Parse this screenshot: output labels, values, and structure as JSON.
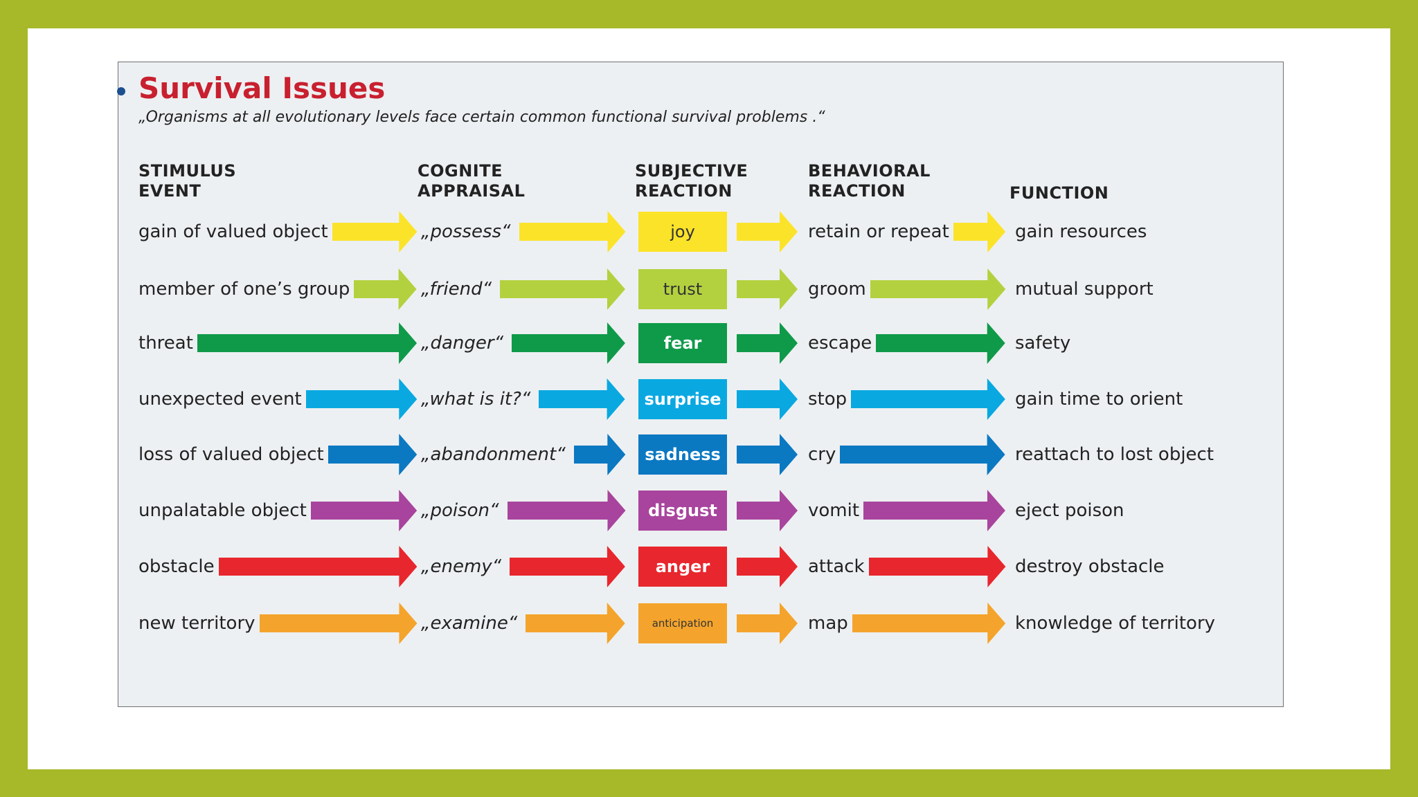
{
  "title": "Survival Issues",
  "subtitle": "„Organisms at all evolutionary levels face certain common functional survival problems .“",
  "headers": {
    "stimulus": [
      "STIMULUS",
      "EVENT"
    ],
    "appraisal": [
      "COGNITE",
      "APPRAISAL"
    ],
    "subjective": [
      "SUBJECTIVE",
      "REACTION"
    ],
    "behavioral": [
      "BEHAVIORAL",
      "REACTION"
    ],
    "function": "FUNCTION"
  },
  "rows": [
    {
      "stimulus": "gain of valued object",
      "appraisal": "„possess“",
      "emotion": "joy",
      "behavior": "retain or repeat",
      "function": "gain resources",
      "color": "#fbe32a"
    },
    {
      "stimulus": "member of one’s group",
      "appraisal": "„friend“",
      "emotion": "trust",
      "behavior": "groom",
      "function": "mutual support",
      "color": "#b3d13f"
    },
    {
      "stimulus": "threat",
      "appraisal": "„danger“",
      "emotion": "fear",
      "behavior": "escape",
      "function": "safety",
      "color": "#0f9a4a"
    },
    {
      "stimulus": "unexpected event",
      "appraisal": "„what is it?“",
      "emotion": "surprise",
      "behavior": "stop",
      "function": "gain time to orient",
      "color": "#0aa8e0"
    },
    {
      "stimulus": "loss of valued object",
      "appraisal": "„abandonment“",
      "emotion": "sadness",
      "behavior": "cry",
      "function": "reattach to lost object",
      "color": "#0b78c2"
    },
    {
      "stimulus": "unpalatable object",
      "appraisal": "„poison“",
      "emotion": "disgust",
      "behavior": "vomit",
      "function": "eject poison",
      "color": "#a8449d"
    },
    {
      "stimulus": "obstacle",
      "appraisal": "„enemy“",
      "emotion": "anger",
      "behavior": "attack",
      "function": "destroy obstacle",
      "color": "#e8262d"
    },
    {
      "stimulus": "new territory",
      "appraisal": "„examine“",
      "emotion": "anticipation",
      "behavior": "map",
      "function": "knowledge of territory",
      "color": "#f4a42c"
    }
  ]
}
